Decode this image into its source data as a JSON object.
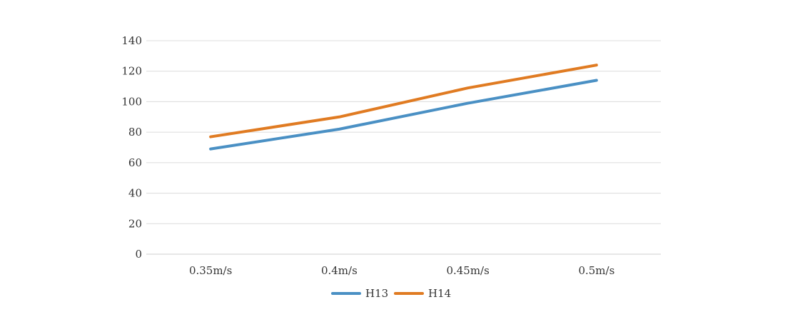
{
  "chart_data": {
    "type": "line",
    "title": "",
    "xlabel": "",
    "ylabel": "",
    "categories": [
      "0.35m/s",
      "0.4m/s",
      "0.45m/s",
      "0.5m/s"
    ],
    "ylim": [
      0,
      140
    ],
    "yticks": [
      "0",
      "20",
      "40",
      "60",
      "80",
      "100",
      "120",
      "140"
    ],
    "grid": true,
    "legend": "bottom",
    "series": [
      {
        "name": "H13",
        "color": "#4a90c4",
        "values": [
          69,
          82,
          99,
          114
        ]
      },
      {
        "name": "H14",
        "color": "#e07b22",
        "values": [
          77,
          90,
          109,
          124
        ]
      }
    ]
  }
}
